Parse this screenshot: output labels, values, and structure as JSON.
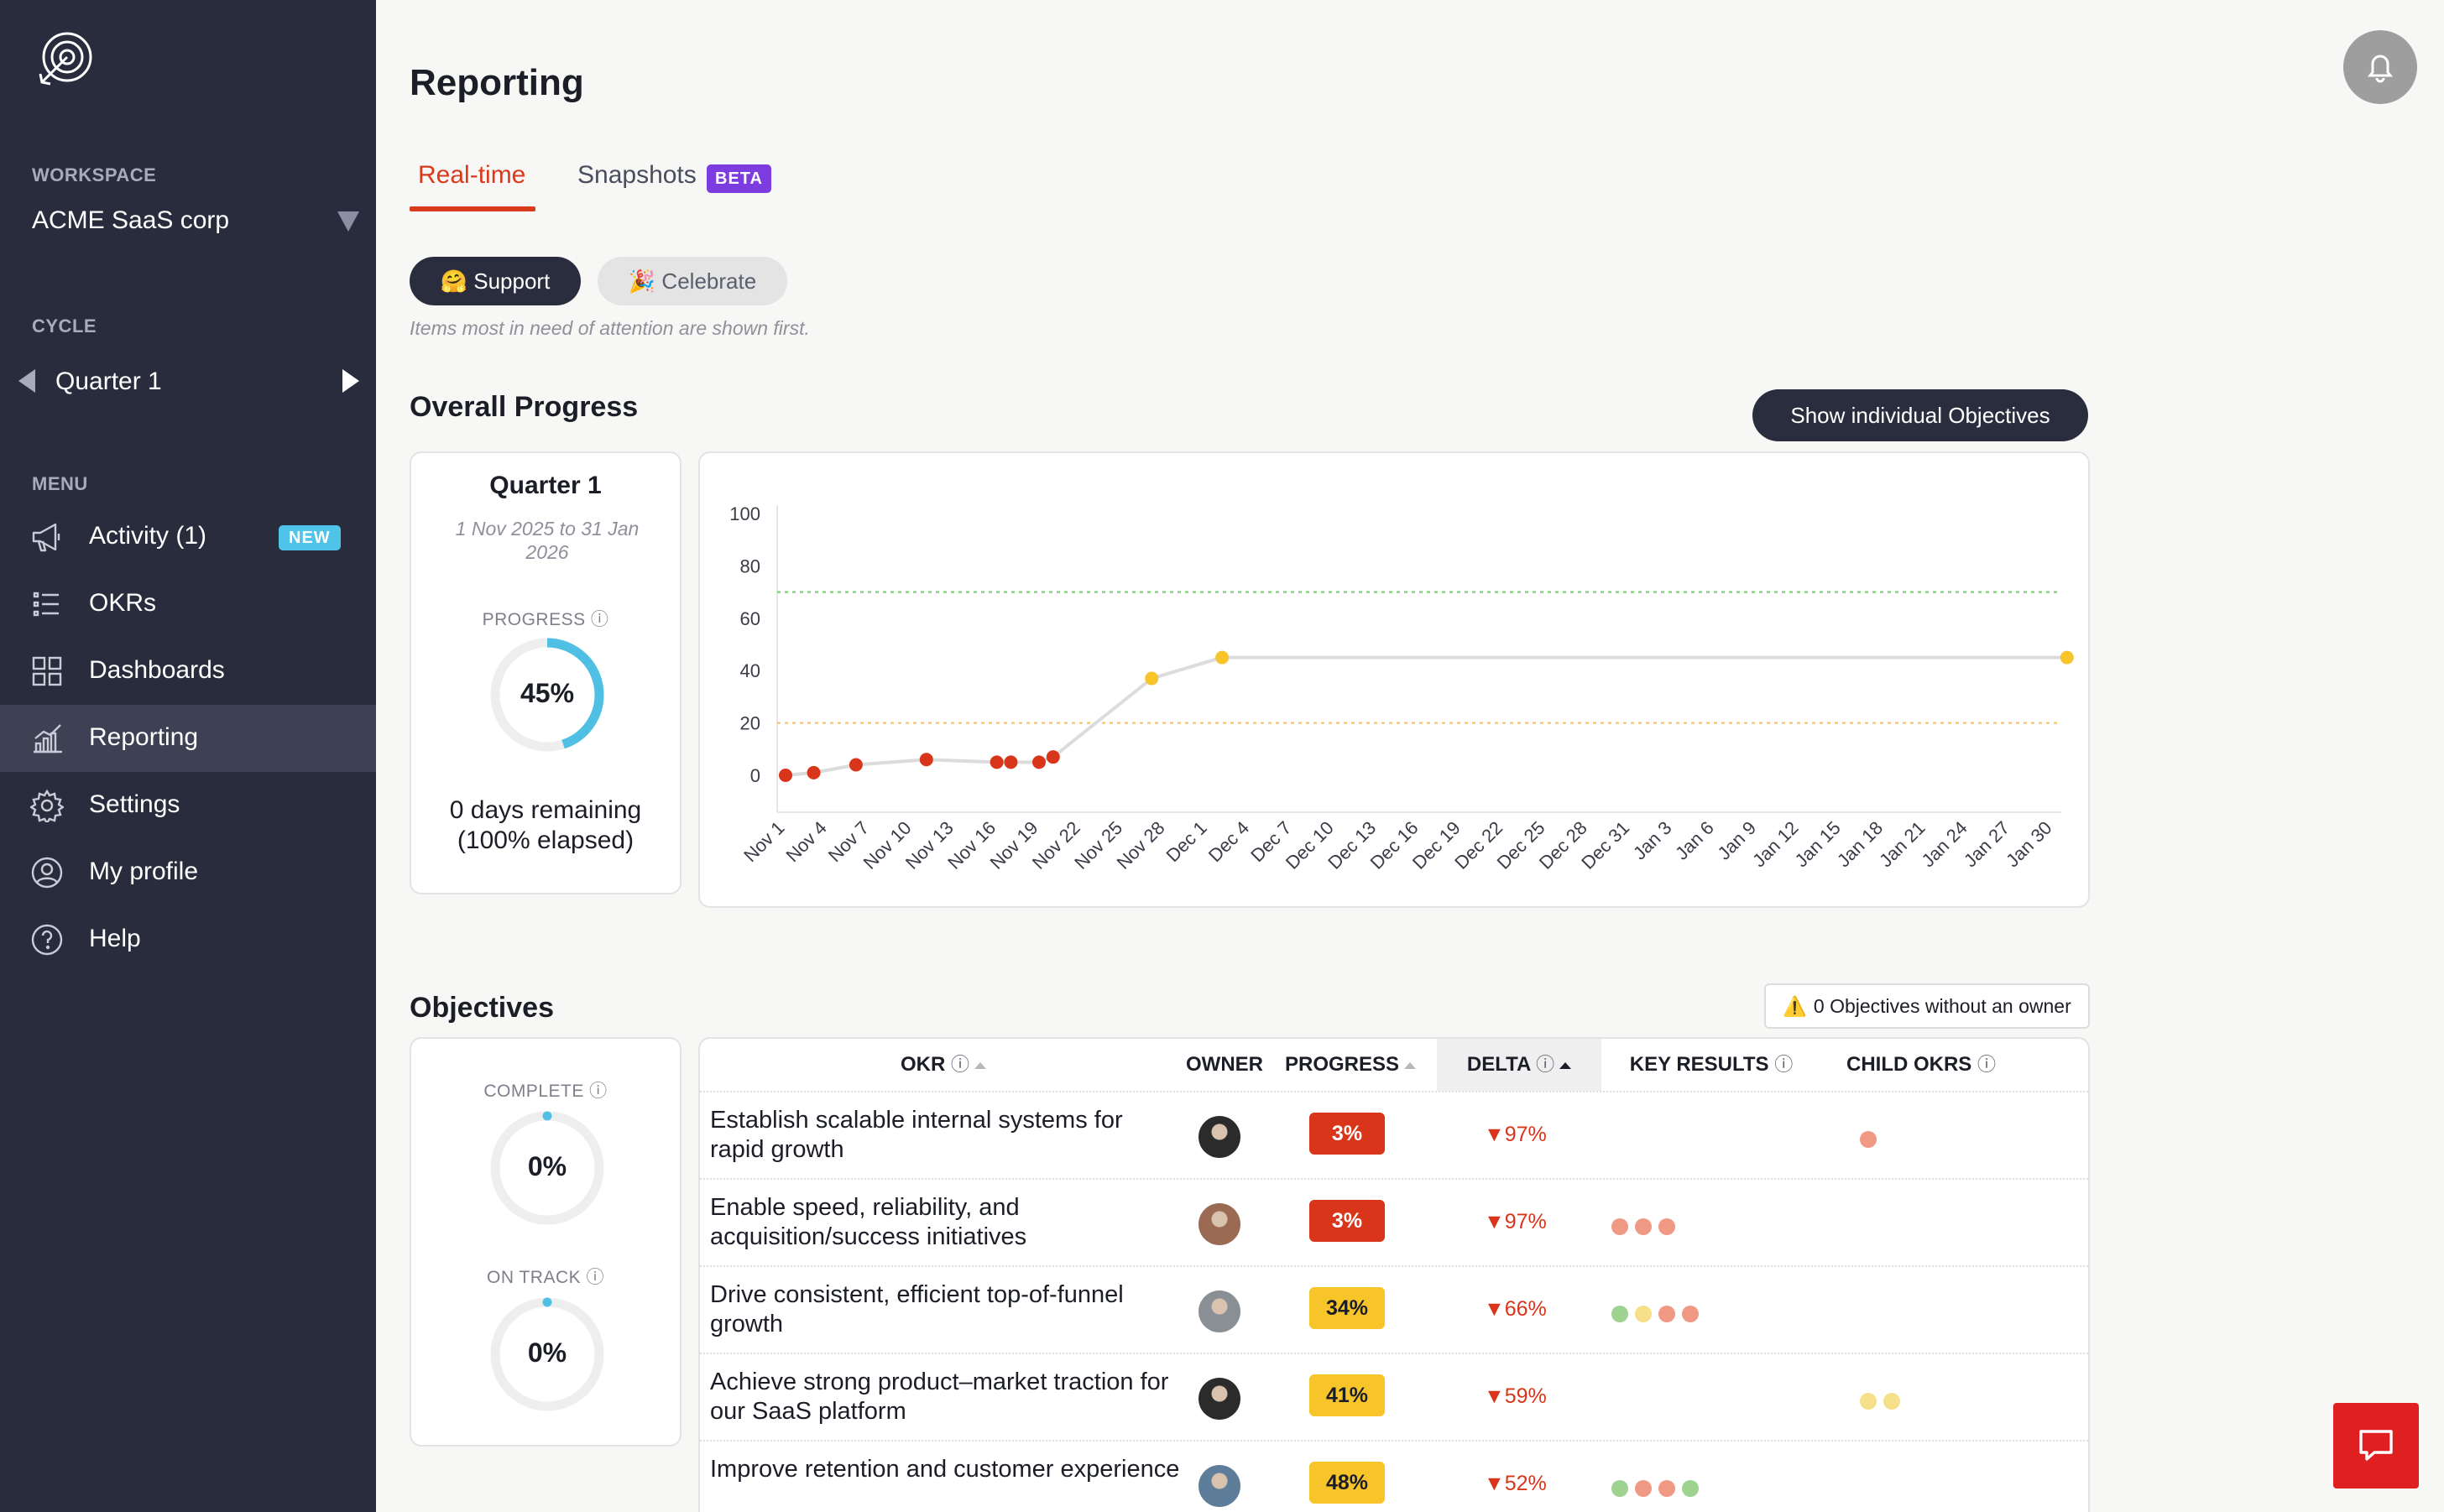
{
  "sidebar": {
    "workspace_label": "WORKSPACE",
    "workspace_name": "ACME SaaS corp",
    "cycle_label": "CYCLE",
    "cycle_name": "Quarter 1",
    "menu_label": "MENU",
    "items": [
      {
        "label": "Activity (1)",
        "icon": "megaphone-icon",
        "badge": "NEW",
        "active": false
      },
      {
        "label": "OKRs",
        "icon": "list-icon",
        "active": false
      },
      {
        "label": "Dashboards",
        "icon": "grid-icon",
        "active": false
      },
      {
        "label": "Reporting",
        "icon": "chart-icon",
        "active": true
      },
      {
        "label": "Settings",
        "icon": "gear-icon",
        "active": false
      },
      {
        "label": "My profile",
        "icon": "user-circle-icon",
        "active": false
      },
      {
        "label": "Help",
        "icon": "help-icon",
        "active": false
      }
    ]
  },
  "header": {
    "title": "Reporting"
  },
  "tabs": {
    "realtime": "Real-time",
    "snapshots": "Snapshots",
    "beta": "BETA"
  },
  "filters": {
    "support": "🤗 Support",
    "celebrate": "🎉 Celebrate",
    "note": "Items most in need of attention are shown first."
  },
  "overall": {
    "title": "Overall Progress",
    "show_objectives": "Show individual Objectives",
    "quarter_name": "Quarter 1",
    "dates": "1 Nov 2025 to 31 Jan 2026",
    "progress_label": "PROGRESS ⓘ",
    "progress_value": "45%",
    "progress_fraction": 0.45,
    "days_line1": "0 days remaining",
    "days_line2": "(100% elapsed)"
  },
  "chart_data": {
    "type": "line",
    "x_labels": [
      "Nov 1",
      "Nov 4",
      "Nov 7",
      "Nov 10",
      "Nov 13",
      "Nov 16",
      "Nov 19",
      "Nov 22",
      "Nov 25",
      "Nov 28",
      "Dec 1",
      "Dec 4",
      "Dec 7",
      "Dec 10",
      "Dec 13",
      "Dec 16",
      "Dec 19",
      "Dec 22",
      "Dec 25",
      "Dec 28",
      "Dec 31",
      "Jan 3",
      "Jan 6",
      "Jan 9",
      "Jan 12",
      "Jan 15",
      "Jan 18",
      "Jan 21",
      "Jan 24",
      "Jan 27",
      "Jan 30"
    ],
    "y_ticks": [
      0,
      20,
      40,
      60,
      80,
      100
    ],
    "ylim": [
      0,
      100
    ],
    "target_line": 70,
    "threshold_line": 20,
    "points": [
      {
        "x": "Nov 1",
        "y": 0,
        "color": "red"
      },
      {
        "x": "Nov 3",
        "y": 1,
        "color": "red"
      },
      {
        "x": "Nov 6",
        "y": 4,
        "color": "red"
      },
      {
        "x": "Nov 11",
        "y": 6,
        "color": "red"
      },
      {
        "x": "Nov 16",
        "y": 5,
        "color": "red"
      },
      {
        "x": "Nov 17",
        "y": 5,
        "color": "red"
      },
      {
        "x": "Nov 19",
        "y": 5,
        "color": "red"
      },
      {
        "x": "Nov 20",
        "y": 7,
        "color": "red"
      },
      {
        "x": "Nov 27",
        "y": 37,
        "color": "yellow"
      },
      {
        "x": "Dec 2",
        "y": 45,
        "color": "yellow"
      },
      {
        "x": "Jan 31",
        "y": 45,
        "color": "yellow"
      }
    ],
    "colors": {
      "red": "#d8351a",
      "yellow": "#f7c52a",
      "line": "#dcdcdc",
      "target": "#8ccf88",
      "threshold": "#f5c97a"
    }
  },
  "objectives": {
    "title": "Objectives",
    "no_owner": "0 Objectives without an owner",
    "complete_label": "COMPLETE ⓘ",
    "complete_value": "0%",
    "ontrack_label": "ON TRACK ⓘ",
    "ontrack_value": "0%",
    "columns": {
      "okr": "OKR",
      "owner": "OWNER",
      "progress": "PROGRESS",
      "delta": "DELTA",
      "key_results": "KEY RESULTS",
      "child_okrs": "CHILD OKRS"
    },
    "rows": [
      {
        "name": "Establish scalable internal systems for rapid growth",
        "progress": "3%",
        "progress_color": "#d8351a",
        "progress_text": "#ffffff",
        "delta": "▼97%",
        "avatar": "#2b2b2b",
        "kr": [],
        "child": [
          "#f09a86"
        ]
      },
      {
        "name": "Enable speed, reliability, and acquisition/success initiatives",
        "progress": "3%",
        "progress_color": "#d8351a",
        "progress_text": "#ffffff",
        "delta": "▼97%",
        "avatar": "#9a6a52",
        "kr": [
          "#f09a86",
          "#f09a86",
          "#f09a86"
        ],
        "child": []
      },
      {
        "name": "Drive consistent, efficient top-of-funnel growth",
        "progress": "34%",
        "progress_color": "#f7c52a",
        "progress_text": "#1c1e27",
        "delta": "▼66%",
        "avatar": "#8a8f95",
        "kr": [
          "#9ed291",
          "#f6e08a",
          "#f09a86",
          "#f09a86"
        ],
        "child": []
      },
      {
        "name": "Achieve strong product–market traction for our SaaS platform",
        "progress": "41%",
        "progress_color": "#f7c52a",
        "progress_text": "#1c1e27",
        "delta": "▼59%",
        "avatar": "#2b2b2b",
        "kr": [],
        "child": [
          "#f6e08a",
          "#f6e08a"
        ]
      },
      {
        "name": "Improve retention and customer experience",
        "progress": "48%",
        "progress_color": "#f7c52a",
        "progress_text": "#1c1e27",
        "delta": "▼52%",
        "avatar": "#5e7d9a",
        "kr": [
          "#9ed291",
          "#f09a86",
          "#f09a86",
          "#9ed291"
        ],
        "child": []
      }
    ]
  }
}
